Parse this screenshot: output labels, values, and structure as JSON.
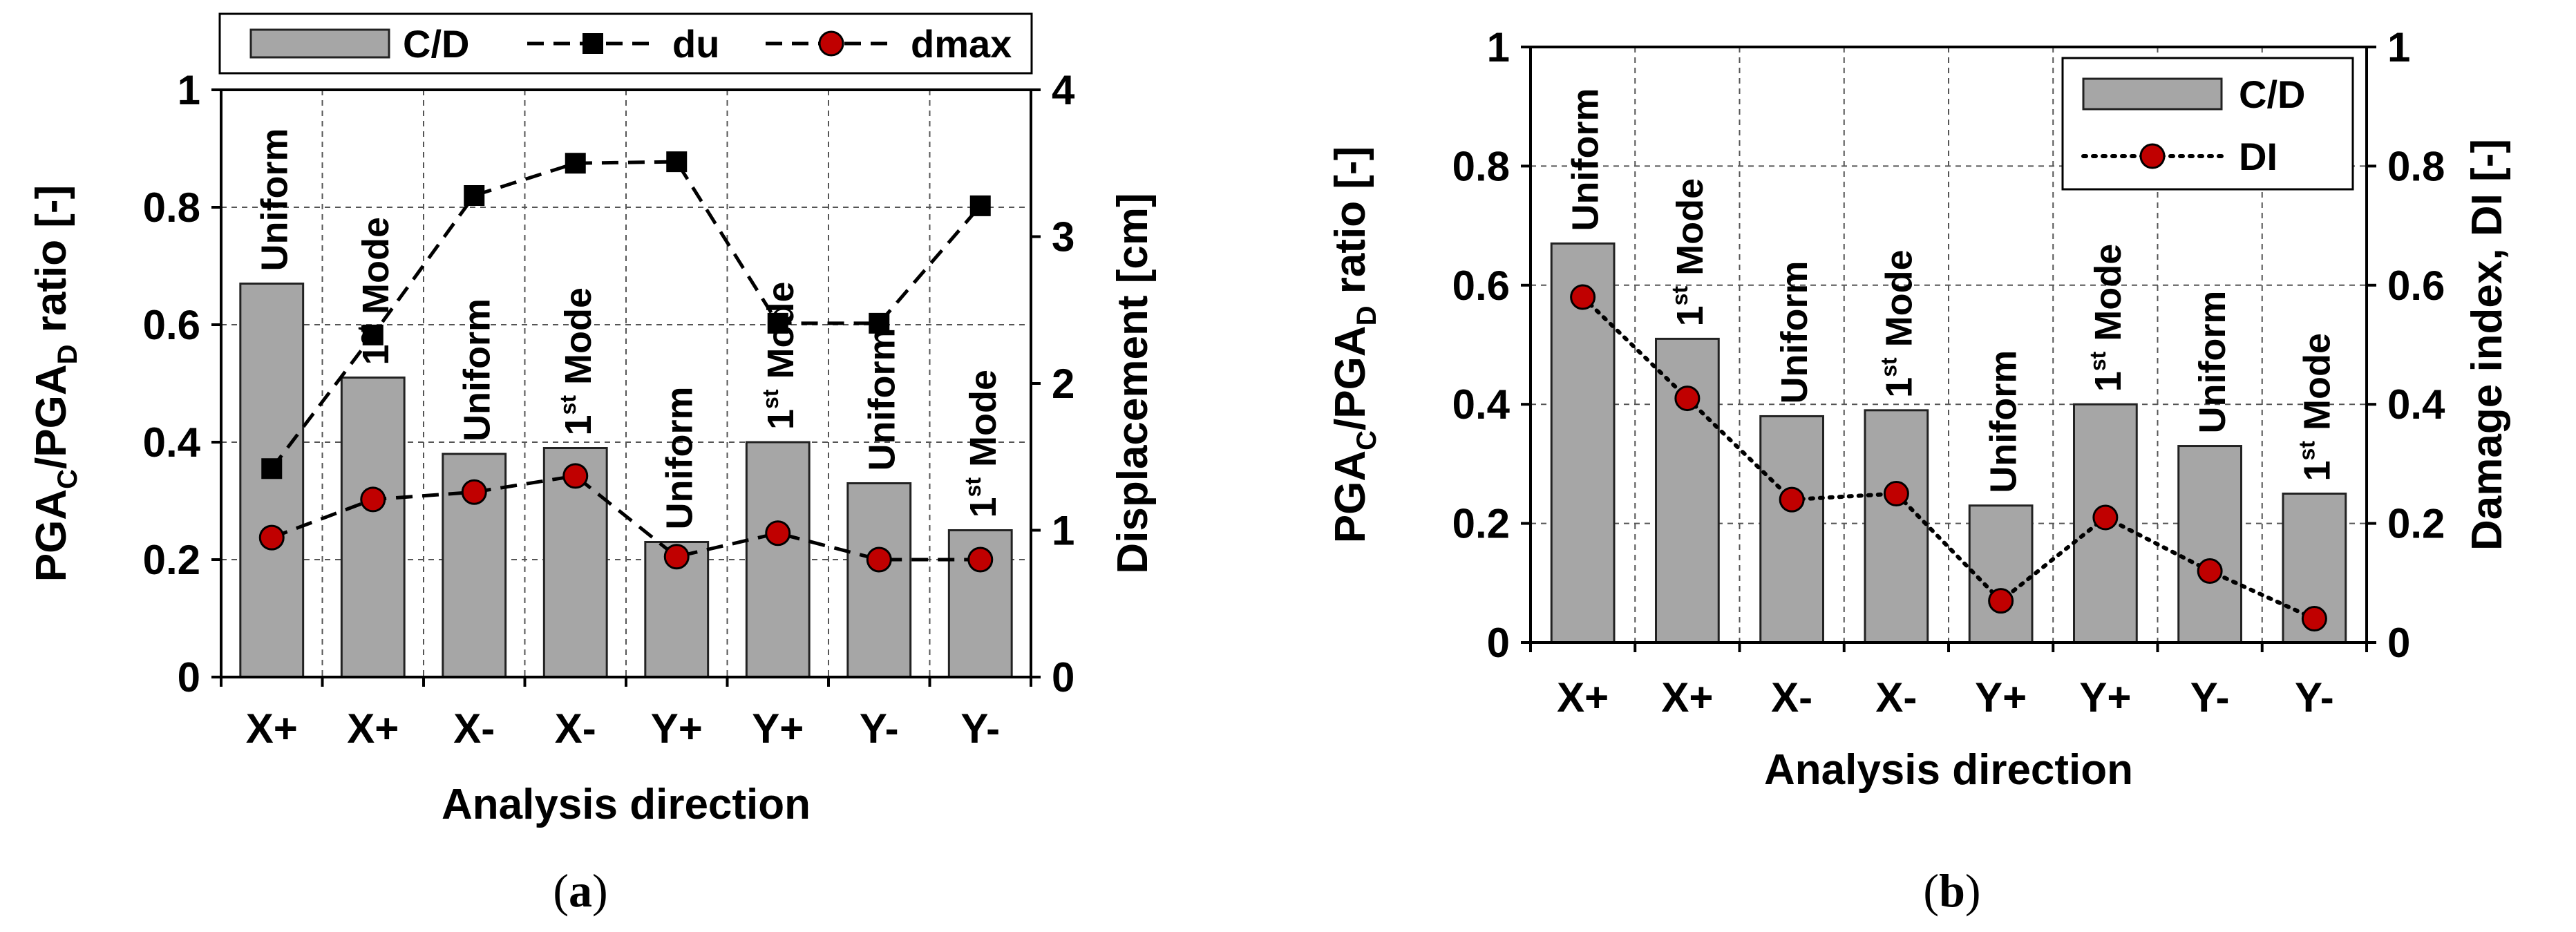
{
  "chart_data": [
    {
      "id": "a",
      "type": "bar",
      "caption_letter": "a",
      "categories": [
        "X+",
        "X+",
        "X-",
        "X-",
        "Y+",
        "Y+",
        "Y-",
        "Y-"
      ],
      "bar_labels": [
        {
          "base": "Uniform",
          "sup": "",
          "rest": ""
        },
        {
          "base": "1",
          "sup": "st",
          "rest": " Mode"
        },
        {
          "base": "Uniform",
          "sup": "",
          "rest": ""
        },
        {
          "base": "1",
          "sup": "st",
          "rest": " Mode"
        },
        {
          "base": "Uniform",
          "sup": "",
          "rest": ""
        },
        {
          "base": "1",
          "sup": "st",
          "rest": " Mode"
        },
        {
          "base": "Uniform",
          "sup": "",
          "rest": ""
        },
        {
          "base": "1",
          "sup": "st",
          "rest": " Mode"
        }
      ],
      "series": [
        {
          "name": "C/D",
          "kind": "bar",
          "axis": "left",
          "values": [
            0.67,
            0.51,
            0.38,
            0.39,
            0.23,
            0.4,
            0.33,
            0.25
          ],
          "color": "#a6a6a6"
        },
        {
          "name": "du",
          "kind": "line",
          "axis": "right",
          "marker": "square",
          "dash": "dashed",
          "values": [
            1.42,
            2.33,
            3.28,
            3.5,
            3.51,
            2.41,
            2.41,
            3.21
          ],
          "color": "#000000"
        },
        {
          "name": "dmax",
          "kind": "line",
          "axis": "right",
          "marker": "circle",
          "dash": "dashed",
          "values": [
            0.95,
            1.21,
            1.26,
            1.37,
            0.82,
            0.98,
            0.8,
            0.8
          ],
          "color": "#c00000"
        }
      ],
      "ylabel_parts": [
        "PGA",
        "C",
        "/PGA",
        "D",
        " ratio [-]"
      ],
      "y2label": "Displacement [cm]",
      "xlabel": "Analysis direction",
      "ylim": [
        0,
        1
      ],
      "y2lim": [
        0,
        4
      ],
      "yticks": [
        "0",
        "0.2",
        "0.4",
        "0.6",
        "0.8",
        "1"
      ],
      "y2ticks": [
        "0",
        "1",
        "2",
        "3",
        "4"
      ],
      "legend": {
        "placement": "top",
        "entries": [
          "C/D",
          "du",
          "dmax"
        ]
      }
    },
    {
      "id": "b",
      "type": "bar",
      "caption_letter": "b",
      "categories": [
        "X+",
        "X+",
        "X-",
        "X-",
        "Y+",
        "Y+",
        "Y-",
        "Y-"
      ],
      "bar_labels": [
        {
          "base": "Uniform",
          "sup": "",
          "rest": ""
        },
        {
          "base": "1",
          "sup": "st",
          "rest": " Mode"
        },
        {
          "base": "Uniform",
          "sup": "",
          "rest": ""
        },
        {
          "base": "1",
          "sup": "st",
          "rest": " Mode"
        },
        {
          "base": "Uniform",
          "sup": "",
          "rest": ""
        },
        {
          "base": "1",
          "sup": "st",
          "rest": " Mode"
        },
        {
          "base": "Uniform",
          "sup": "",
          "rest": ""
        },
        {
          "base": "1",
          "sup": "st",
          "rest": " Mode"
        }
      ],
      "series": [
        {
          "name": "C/D",
          "kind": "bar",
          "axis": "left",
          "values": [
            0.67,
            0.51,
            0.38,
            0.39,
            0.23,
            0.4,
            0.33,
            0.25
          ],
          "color": "#a6a6a6"
        },
        {
          "name": "DI",
          "kind": "line",
          "axis": "right",
          "marker": "circle",
          "dash": "dotted",
          "values": [
            0.58,
            0.41,
            0.24,
            0.25,
            0.07,
            0.21,
            0.12,
            0.04
          ],
          "color": "#c00000"
        }
      ],
      "ylabel_parts": [
        "PGA",
        "C",
        "/PGA",
        "D",
        " ratio [-]"
      ],
      "y2label": "Damage index, DI [-]",
      "xlabel": "Analysis direction",
      "ylim": [
        0,
        1
      ],
      "y2lim": [
        0,
        1
      ],
      "yticks": [
        "0",
        "0.2",
        "0.4",
        "0.6",
        "0.8",
        "1"
      ],
      "y2ticks": [
        "0",
        "0.2",
        "0.4",
        "0.6",
        "0.8",
        "1"
      ],
      "legend": {
        "placement": "top-right",
        "entries": [
          "C/D",
          "DI"
        ]
      }
    }
  ]
}
